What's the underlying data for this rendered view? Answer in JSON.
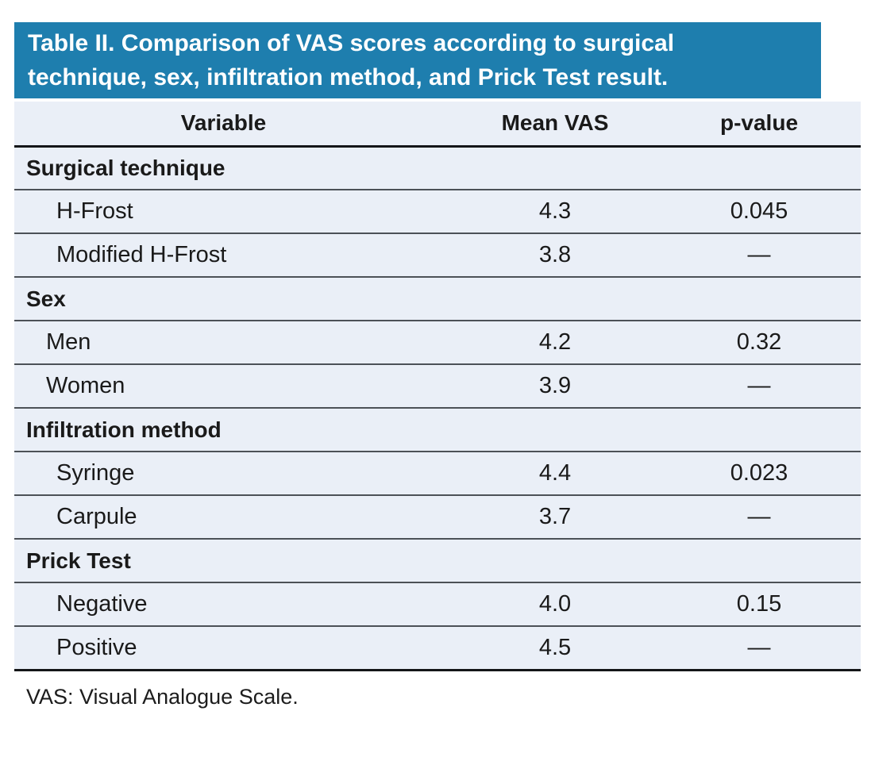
{
  "table": {
    "title_lines": [
      "Table II. Comparison of VAS scores according to surgical",
      "technique, sex, infiltration method, and Prick Test result."
    ],
    "columns": [
      "Variable",
      "Mean VAS",
      "p-value"
    ],
    "sections": [
      {
        "label": "Surgical technique",
        "rows": [
          {
            "label": "H-Frost",
            "mean_vas": "4.3",
            "p_value": "0.045"
          },
          {
            "label": "Modified H-Frost",
            "mean_vas": "3.8",
            "p_value": "—"
          }
        ]
      },
      {
        "label": "Sex",
        "rows": [
          {
            "label": "Men",
            "mean_vas": "4.2",
            "p_value": "0.32"
          },
          {
            "label": "Women",
            "mean_vas": "3.9",
            "p_value": "—"
          }
        ]
      },
      {
        "label": "Infiltration method",
        "rows": [
          {
            "label": "Syringe",
            "mean_vas": "4.4",
            "p_value": "0.023"
          },
          {
            "label": "Carpule",
            "mean_vas": "3.7",
            "p_value": "—"
          }
        ]
      },
      {
        "label": "Prick Test",
        "rows": [
          {
            "label": "Negative",
            "mean_vas": "4.0",
            "p_value": "0.15"
          },
          {
            "label": "Positive",
            "mean_vas": "4.5",
            "p_value": "—"
          }
        ]
      }
    ],
    "footnote": "VAS: Visual Analogue Scale.",
    "colors": {
      "title_bar_bg": "#1e7eae",
      "title_text": "#ffffff",
      "row_bg": "#eaeff7",
      "thin_rule": "#4c5157",
      "thick_rule": "#141618",
      "text": "#1a1a1a"
    }
  }
}
